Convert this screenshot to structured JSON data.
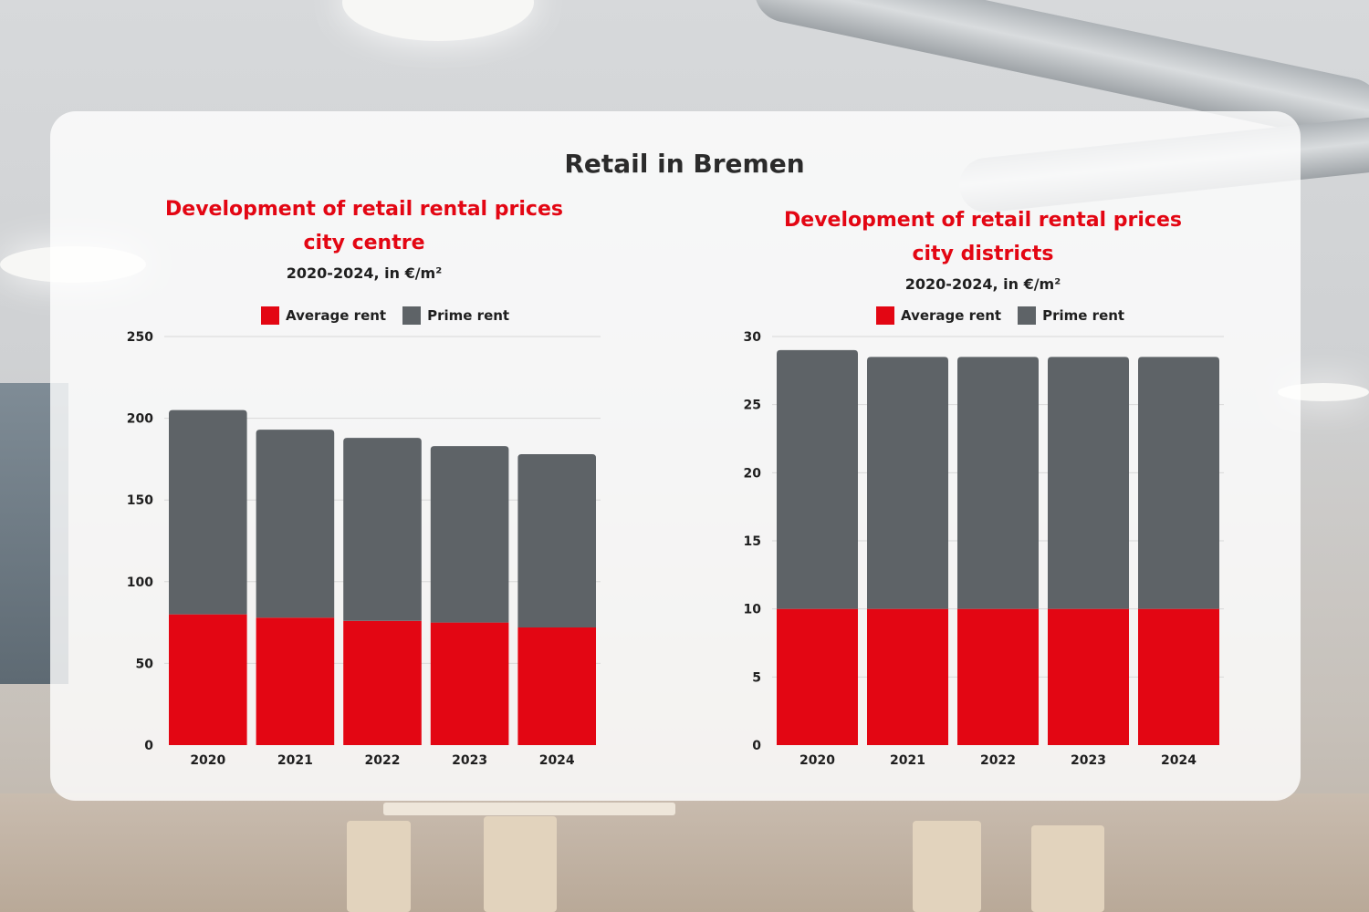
{
  "title": "Retail in Bremen",
  "colors": {
    "average": "#e30613",
    "prime": "#5e6367",
    "title_red": "#e30613"
  },
  "legend": {
    "average": "Average rent",
    "prime": "Prime rent"
  },
  "chart_data": [
    {
      "type": "bar",
      "stacked": true,
      "title": "Development of retail rental prices",
      "title_line2": "city centre",
      "subtitle": "2020-2024, in €/m²",
      "categories": [
        "2020",
        "2021",
        "2022",
        "2023",
        "2024"
      ],
      "series": [
        {
          "name": "Average rent",
          "values": [
            80,
            78,
            76,
            75,
            72
          ]
        },
        {
          "name": "Prime rent",
          "values": [
            125,
            115,
            112,
            108,
            106
          ]
        }
      ],
      "ylim": [
        0,
        250
      ],
      "yticks": [
        0,
        50,
        100,
        150,
        200,
        250
      ],
      "grid": true,
      "legend_position": "top"
    },
    {
      "type": "bar",
      "stacked": true,
      "title": "Development of retail rental prices",
      "title_line2": "city districts",
      "subtitle": "2020-2024, in €/m²",
      "categories": [
        "2020",
        "2021",
        "2022",
        "2023",
        "2024"
      ],
      "series": [
        {
          "name": "Average rent",
          "values": [
            10,
            10,
            10,
            10,
            10
          ]
        },
        {
          "name": "Prime rent",
          "values": [
            19,
            18.5,
            18.5,
            18.5,
            18.5
          ]
        }
      ],
      "ylim": [
        0,
        30
      ],
      "yticks": [
        0,
        5,
        10,
        15,
        20,
        25,
        30
      ],
      "grid": true,
      "legend_position": "top"
    }
  ]
}
